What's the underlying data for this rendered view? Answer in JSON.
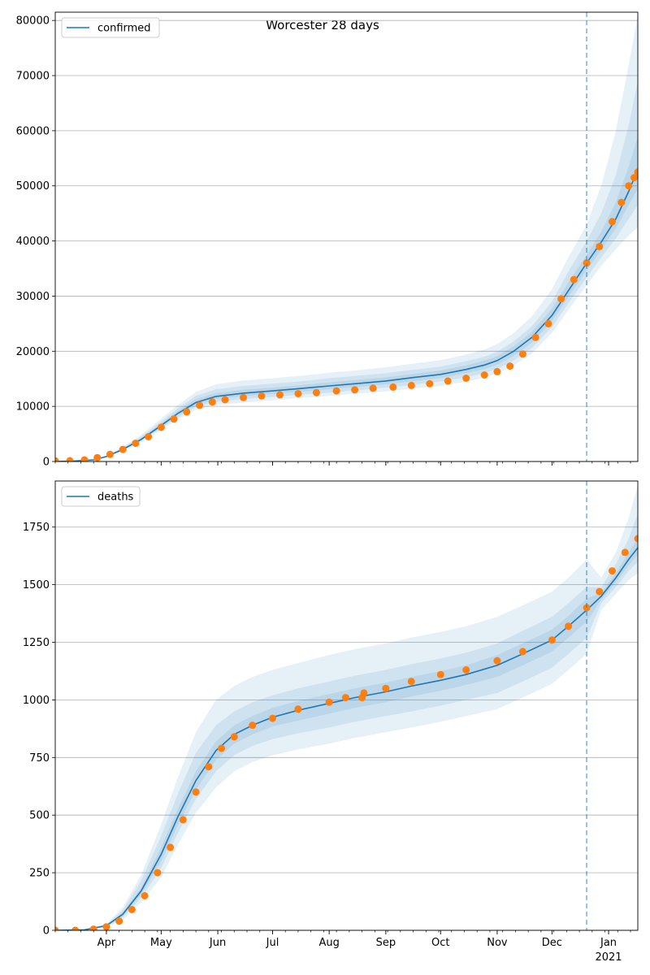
{
  "title": "Worcester 28 days",
  "colors": {
    "model_line": "#1f77b4",
    "band": "#1f77b4",
    "observed": "#ff7f0e",
    "forecast_marker": "#1f77b4",
    "grid": "#b0b0b0"
  },
  "x_ticks": [
    "Apr",
    "May",
    "Jun",
    "Jul",
    "Aug",
    "Sep",
    "Oct",
    "Nov",
    "Dec",
    "Jan"
  ],
  "x_year_label": "2021",
  "chart_data": [
    {
      "type": "line",
      "legend": "confirmed",
      "legend_position": "top-left",
      "grid": "horizontal",
      "xlim": [
        "2020-03-04",
        "2021-01-17"
      ],
      "ylim": [
        0,
        81500
      ],
      "y_ticks": [
        0,
        10000,
        20000,
        30000,
        40000,
        50000,
        60000,
        70000,
        80000
      ],
      "forecast_start": "2020-12-20",
      "model": {
        "x": [
          "2020-03-04",
          "2020-03-15",
          "2020-03-25",
          "2020-04-01",
          "2020-04-10",
          "2020-04-20",
          "2020-04-30",
          "2020-05-10",
          "2020-05-20",
          "2020-05-31",
          "2020-06-15",
          "2020-07-01",
          "2020-07-15",
          "2020-08-01",
          "2020-08-15",
          "2020-09-01",
          "2020-09-15",
          "2020-10-01",
          "2020-10-15",
          "2020-10-25",
          "2020-11-01",
          "2020-11-10",
          "2020-11-20",
          "2020-12-01",
          "2020-12-10",
          "2020-12-20",
          "2020-12-28",
          "2021-01-05",
          "2021-01-12",
          "2021-01-17"
        ],
        "y": [
          0,
          100,
          300,
          900,
          2200,
          4000,
          6300,
          8700,
          10700,
          11800,
          12400,
          12800,
          13200,
          13700,
          14100,
          14600,
          15200,
          15800,
          16700,
          17500,
          18300,
          20000,
          22500,
          26500,
          31000,
          36000,
          39800,
          44000,
          49000,
          53000
        ],
        "bands": [
          {
            "lower": [
              0,
              80,
              250,
              780,
              1900,
              3500,
              5500,
              7600,
              9400,
              10200,
              10700,
              11100,
              11500,
              11900,
              12300,
              12700,
              13200,
              13700,
              14500,
              15200,
              16000,
              17400,
              19600,
              23300,
              27500,
              32000,
              35500,
              38500,
              41000,
              42500
            ],
            "upper": [
              0,
              130,
              380,
              1100,
              2700,
              4800,
              7500,
              10200,
              12600,
              14000,
              14700,
              15100,
              15500,
              16100,
              16500,
              17100,
              17700,
              18400,
              19400,
              20300,
              21300,
              23300,
              26300,
              31300,
              37000,
              43000,
              50000,
              60000,
              72000,
              81000
            ]
          },
          {
            "lower": [
              0,
              85,
              265,
              820,
              2000,
              3700,
              5800,
              8000,
              9900,
              10800,
              11300,
              11700,
              12100,
              12500,
              12900,
              13400,
              13900,
              14500,
              15300,
              16000,
              16800,
              18300,
              20600,
              24400,
              28700,
              33400,
              37000,
              40500,
              44000,
              46500
            ],
            "upper": [
              0,
              120,
              350,
              1020,
              2500,
              4500,
              7000,
              9600,
              11900,
              13100,
              13700,
              14100,
              14500,
              15100,
              15500,
              16000,
              16600,
              17200,
              18200,
              19000,
              19900,
              21800,
              24500,
              29000,
              34500,
              40000,
              45000,
              52000,
              61000,
              69000
            ]
          },
          {
            "lower": [
              0,
              90,
              280,
              860,
              2100,
              3850,
              6050,
              8350,
              10300,
              11300,
              11850,
              12250,
              12650,
              13100,
              13500,
              14000,
              14550,
              15150,
              16000,
              16750,
              17550,
              19150,
              21550,
              25450,
              29850,
              34700,
              38400,
              42300,
              46500,
              49500
            ],
            "upper": [
              0,
              110,
              320,
              950,
              2350,
              4250,
              6650,
              9150,
              11300,
              12400,
              13000,
              13400,
              13800,
              14350,
              14750,
              15250,
              15850,
              16500,
              17450,
              18300,
              19100,
              20900,
              23500,
              27700,
              32500,
              37500,
              41700,
              47000,
              53500,
              59000
            ]
          }
        ]
      },
      "observed": {
        "x": [
          "2020-03-04",
          "2020-03-12",
          "2020-03-20",
          "2020-03-27",
          "2020-04-03",
          "2020-04-10",
          "2020-04-17",
          "2020-04-24",
          "2020-05-01",
          "2020-05-08",
          "2020-05-15",
          "2020-05-22",
          "2020-05-29",
          "2020-06-05",
          "2020-06-15",
          "2020-06-25",
          "2020-07-05",
          "2020-07-15",
          "2020-07-25",
          "2020-08-05",
          "2020-08-15",
          "2020-08-25",
          "2020-09-05",
          "2020-09-15",
          "2020-09-25",
          "2020-10-05",
          "2020-10-15",
          "2020-10-25",
          "2020-11-01",
          "2020-11-08",
          "2020-11-15",
          "2020-11-22",
          "2020-11-29",
          "2020-12-06",
          "2020-12-13",
          "2020-12-20",
          "2020-12-27",
          "2021-01-03",
          "2021-01-08",
          "2021-01-12",
          "2021-01-15",
          "2021-01-17"
        ],
        "y": [
          100,
          150,
          300,
          700,
          1300,
          2200,
          3300,
          4500,
          6200,
          7700,
          9000,
          10200,
          10800,
          11200,
          11600,
          11900,
          12100,
          12300,
          12500,
          12800,
          13000,
          13300,
          13500,
          13800,
          14100,
          14600,
          15100,
          15700,
          16300,
          17300,
          19500,
          22500,
          25000,
          29500,
          33000,
          36000,
          39000,
          43500,
          47000,
          50000,
          51500,
          52500
        ]
      }
    },
    {
      "type": "line",
      "legend": "deaths",
      "legend_position": "top-left",
      "grid": "horizontal",
      "xlim": [
        "2020-03-04",
        "2021-01-17"
      ],
      "ylim": [
        0,
        1950
      ],
      "y_ticks": [
        0,
        250,
        500,
        750,
        1000,
        1250,
        1500,
        1750
      ],
      "forecast_start": "2020-12-20",
      "model": {
        "x": [
          "2020-03-04",
          "2020-03-20",
          "2020-04-01",
          "2020-04-10",
          "2020-04-20",
          "2020-05-01",
          "2020-05-10",
          "2020-05-20",
          "2020-05-31",
          "2020-06-10",
          "2020-06-20",
          "2020-07-01",
          "2020-07-15",
          "2020-08-01",
          "2020-08-15",
          "2020-09-01",
          "2020-09-15",
          "2020-10-01",
          "2020-10-15",
          "2020-11-01",
          "2020-11-15",
          "2020-12-01",
          "2020-12-10",
          "2020-12-20",
          "2020-12-28",
          "2021-01-05",
          "2021-01-12",
          "2021-01-17"
        ],
        "y": [
          0,
          2,
          20,
          70,
          170,
          330,
          490,
          650,
          780,
          850,
          890,
          925,
          955,
          985,
          1010,
          1035,
          1060,
          1085,
          1110,
          1150,
          1200,
          1260,
          1320,
          1390,
          1450,
          1530,
          1610,
          1660
        ],
        "bands": [
          {
            "lower": [
              0,
              1,
              12,
              45,
              120,
              230,
              370,
              510,
              620,
              690,
              730,
              760,
              785,
              810,
              835,
              860,
              880,
              905,
              930,
              960,
              1010,
              1070,
              1130,
              1200,
              1390,
              1460,
              1520,
              1550
            ],
            "upper": [
              0,
              3,
              28,
              100,
              240,
              460,
              660,
              860,
              1000,
              1060,
              1100,
              1130,
              1160,
              1195,
              1220,
              1245,
              1270,
              1295,
              1320,
              1360,
              1410,
              1470,
              1530,
              1610,
              1530,
              1640,
              1790,
              1930
            ]
          },
          {
            "lower": [
              0,
              1,
              15,
              55,
              140,
              270,
              420,
              570,
              690,
              760,
              800,
              830,
              855,
              880,
              905,
              930,
              950,
              975,
              1000,
              1030,
              1080,
              1140,
              1200,
              1270,
              1420,
              1490,
              1560,
              1600
            ],
            "upper": [
              0,
              3,
              24,
              88,
              215,
              410,
              590,
              770,
              890,
              950,
              990,
              1020,
              1050,
              1080,
              1105,
              1130,
              1155,
              1180,
              1205,
              1245,
              1300,
              1360,
              1420,
              1490,
              1490,
              1590,
              1700,
              1810
            ]
          },
          {
            "lower": [
              0,
              2,
              18,
              62,
              155,
              300,
              455,
              610,
              740,
              810,
              850,
              885,
              910,
              940,
              965,
              990,
              1015,
              1040,
              1065,
              1100,
              1150,
              1210,
              1270,
              1340,
              1435,
              1510,
              1585,
              1630
            ],
            "upper": [
              0,
              2,
              22,
              78,
              185,
              360,
              525,
              690,
              820,
              890,
              930,
              965,
              995,
              1025,
              1050,
              1075,
              1100,
              1125,
              1150,
              1195,
              1245,
              1305,
              1365,
              1440,
              1465,
              1550,
              1640,
              1700
            ]
          }
        ]
      },
      "observed": {
        "x": [
          "2020-03-04",
          "2020-03-15",
          "2020-03-25",
          "2020-04-01",
          "2020-04-08",
          "2020-04-15",
          "2020-04-22",
          "2020-04-29",
          "2020-05-06",
          "2020-05-13",
          "2020-05-20",
          "2020-05-27",
          "2020-06-03",
          "2020-06-10",
          "2020-06-20",
          "2020-07-01",
          "2020-07-15",
          "2020-08-01",
          "2020-08-10",
          "2020-08-19",
          "2020-08-20",
          "2020-09-01",
          "2020-09-15",
          "2020-10-01",
          "2020-10-15",
          "2020-11-01",
          "2020-11-15",
          "2020-12-01",
          "2020-12-10",
          "2020-12-20",
          "2020-12-27",
          "2021-01-03",
          "2021-01-10",
          "2021-01-17"
        ],
        "y": [
          0,
          0,
          5,
          15,
          40,
          90,
          150,
          250,
          360,
          480,
          600,
          710,
          790,
          840,
          890,
          920,
          960,
          990,
          1010,
          1010,
          1030,
          1050,
          1080,
          1110,
          1130,
          1170,
          1210,
          1260,
          1320,
          1400,
          1470,
          1560,
          1640,
          1700
        ]
      }
    }
  ]
}
